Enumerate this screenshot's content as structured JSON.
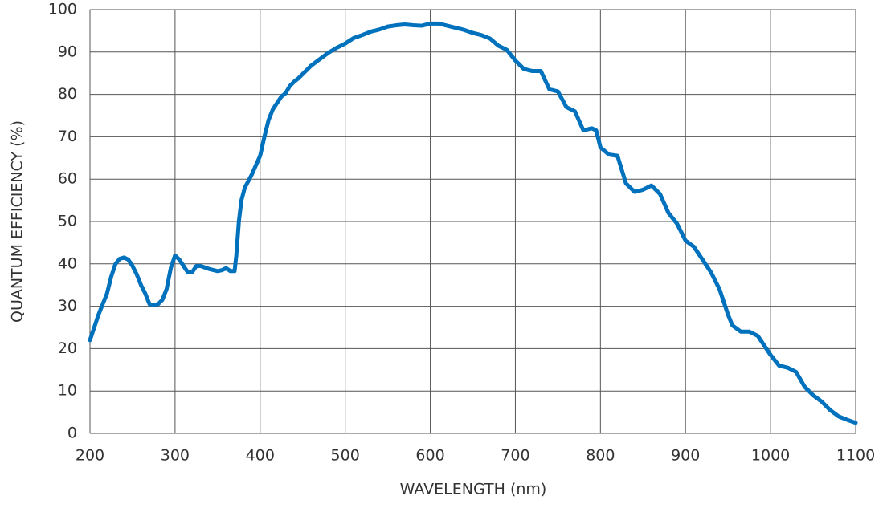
{
  "chart_data": {
    "type": "line",
    "xlabel": "WAVELENGTH (nm)",
    "ylabel": "QUANTUM EFFICIENCY (%)",
    "xlim": [
      200,
      1100
    ],
    "ylim": [
      0,
      100
    ],
    "xticks": [
      200,
      300,
      400,
      500,
      600,
      700,
      800,
      900,
      1000,
      1100
    ],
    "yticks": [
      0,
      10,
      20,
      30,
      40,
      50,
      60,
      70,
      80,
      90,
      100
    ],
    "grid": true,
    "series": [
      {
        "color": "#0071bc",
        "x": [
          200,
          205,
          210,
          215,
          220,
          225,
          230,
          235,
          240,
          245,
          250,
          255,
          260,
          265,
          270,
          275,
          280,
          285,
          290,
          295,
          300,
          305,
          310,
          315,
          320,
          325,
          330,
          340,
          350,
          355,
          360,
          365,
          370,
          372,
          375,
          378,
          382,
          390,
          400,
          405,
          410,
          415,
          420,
          425,
          430,
          435,
          440,
          445,
          450,
          460,
          470,
          480,
          490,
          500,
          510,
          520,
          530,
          540,
          550,
          560,
          570,
          580,
          590,
          600,
          610,
          620,
          630,
          640,
          650,
          660,
          670,
          680,
          690,
          700,
          710,
          720,
          730,
          740,
          750,
          760,
          770,
          780,
          790,
          795,
          800,
          810,
          820,
          830,
          840,
          850,
          860,
          870,
          880,
          890,
          900,
          910,
          920,
          930,
          940,
          950,
          955,
          965,
          975,
          985,
          1000,
          1010,
          1020,
          1030,
          1040,
          1050,
          1060,
          1070,
          1080,
          1090,
          1100
        ],
        "values": [
          22,
          25,
          28,
          30.5,
          33,
          37,
          40,
          41.2,
          41.5,
          41,
          39.5,
          37.5,
          35,
          33,
          30.5,
          30.3,
          30.5,
          31.5,
          34,
          39,
          42,
          41,
          39.5,
          38,
          38,
          39.5,
          39.5,
          38.8,
          38.3,
          38.5,
          39,
          38.3,
          38.3,
          42,
          50,
          55,
          58,
          61,
          65.5,
          70,
          74,
          76.5,
          78,
          79.5,
          80.3,
          82,
          83,
          83.8,
          84.8,
          86.8,
          88.3,
          89.8,
          91,
          92,
          93.3,
          94,
          94.8,
          95.3,
          96,
          96.3,
          96.5,
          96.3,
          96.2,
          96.7,
          96.7,
          96.2,
          95.7,
          95.2,
          94.5,
          94,
          93.2,
          91.5,
          90.5,
          88,
          86,
          85.5,
          85.5,
          81.2,
          80.7,
          77,
          76,
          71.5,
          72,
          71.5,
          67.5,
          65.8,
          65.5,
          59,
          57,
          57.5,
          58.5,
          56.5,
          52,
          49.5,
          45.5,
          44,
          41,
          38,
          34,
          28,
          25.5,
          24,
          24,
          23,
          18.5,
          16,
          15.5,
          14.5,
          11,
          9,
          7.5,
          5.5,
          4,
          3.2,
          2.5
        ]
      }
    ]
  }
}
